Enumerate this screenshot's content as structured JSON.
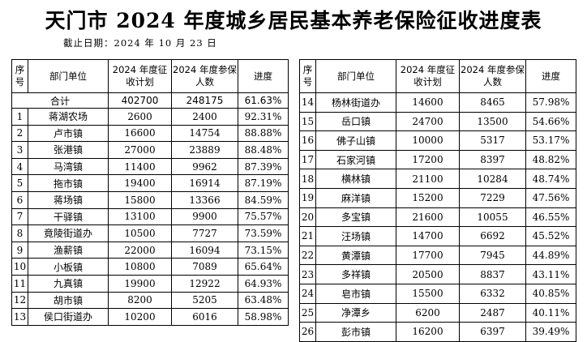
{
  "title": "天门市 2024 年度城乡居民基本养老保险征收进度表",
  "subtitle": "截止日期：2024 年 10 月 23 日",
  "headers": {
    "seq": "序号",
    "unit": "部门单位",
    "plan": "2024 年度征收计划",
    "insured": "2024 年度参保人数",
    "progress": "进度"
  },
  "total": {
    "label": "合计",
    "plan": "402700",
    "insured": "248175",
    "progress": "61.63%"
  },
  "left_rows": [
    {
      "seq": "1",
      "unit": "蒋湖农场",
      "plan": "2600",
      "insured": "2400",
      "progress": "92.31%"
    },
    {
      "seq": "2",
      "unit": "卢市镇",
      "plan": "16600",
      "insured": "14754",
      "progress": "88.88%"
    },
    {
      "seq": "3",
      "unit": "张港镇",
      "plan": "27000",
      "insured": "23889",
      "progress": "88.48%"
    },
    {
      "seq": "4",
      "unit": "马湾镇",
      "plan": "11400",
      "insured": "9962",
      "progress": "87.39%"
    },
    {
      "seq": "5",
      "unit": "拖市镇",
      "plan": "19400",
      "insured": "16914",
      "progress": "87.19%"
    },
    {
      "seq": "6",
      "unit": "蒋场镇",
      "plan": "15800",
      "insured": "13366",
      "progress": "84.59%"
    },
    {
      "seq": "7",
      "unit": "干驿镇",
      "plan": "13100",
      "insured": "9900",
      "progress": "75.57%"
    },
    {
      "seq": "8",
      "unit": "竟陵街道办",
      "plan": "10500",
      "insured": "7727",
      "progress": "73.59%"
    },
    {
      "seq": "9",
      "unit": "渔薪镇",
      "plan": "22000",
      "insured": "16094",
      "progress": "73.15%"
    },
    {
      "seq": "10",
      "unit": "小板镇",
      "plan": "10800",
      "insured": "7089",
      "progress": "65.64%"
    },
    {
      "seq": "11",
      "unit": "九真镇",
      "plan": "19900",
      "insured": "12922",
      "progress": "64.93%"
    },
    {
      "seq": "12",
      "unit": "胡市镇",
      "plan": "8200",
      "insured": "5205",
      "progress": "63.48%"
    },
    {
      "seq": "13",
      "unit": "侯口街道办",
      "plan": "10200",
      "insured": "6016",
      "progress": "58.98%"
    }
  ],
  "right_rows": [
    {
      "seq": "14",
      "unit": "杨林街道办",
      "plan": "14600",
      "insured": "8465",
      "progress": "57.98%"
    },
    {
      "seq": "15",
      "unit": "岳口镇",
      "plan": "24700",
      "insured": "13500",
      "progress": "54.66%"
    },
    {
      "seq": "16",
      "unit": "佛子山镇",
      "plan": "10000",
      "insured": "5317",
      "progress": "53.17%"
    },
    {
      "seq": "17",
      "unit": "石家河镇",
      "plan": "17200",
      "insured": "8397",
      "progress": "48.82%"
    },
    {
      "seq": "18",
      "unit": "横林镇",
      "plan": "21100",
      "insured": "10284",
      "progress": "48.74%"
    },
    {
      "seq": "19",
      "unit": "麻洋镇",
      "plan": "15200",
      "insured": "7229",
      "progress": "47.56%"
    },
    {
      "seq": "20",
      "unit": "多宝镇",
      "plan": "21600",
      "insured": "10055",
      "progress": "46.55%"
    },
    {
      "seq": "21",
      "unit": "汪场镇",
      "plan": "14700",
      "insured": "6692",
      "progress": "45.52%"
    },
    {
      "seq": "22",
      "unit": "黄潭镇",
      "plan": "17700",
      "insured": "7945",
      "progress": "44.89%"
    },
    {
      "seq": "23",
      "unit": "多祥镇",
      "plan": "20500",
      "insured": "8837",
      "progress": "43.11%"
    },
    {
      "seq": "24",
      "unit": "皂市镇",
      "plan": "15500",
      "insured": "6332",
      "progress": "40.85%"
    },
    {
      "seq": "25",
      "unit": "净潭乡",
      "plan": "6200",
      "insured": "2487",
      "progress": "40.11%"
    },
    {
      "seq": "26",
      "unit": "彭市镇",
      "plan": "16200",
      "insured": "6397",
      "progress": "39.49%"
    }
  ]
}
